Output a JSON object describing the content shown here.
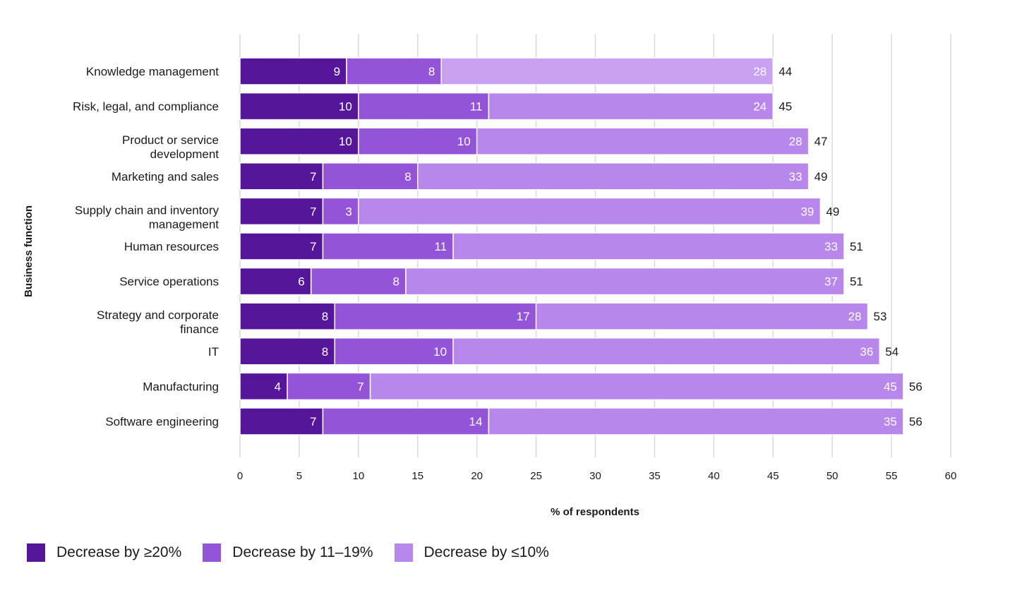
{
  "chart_data": {
    "type": "bar",
    "orientation": "horizontal",
    "stacked": true,
    "xlabel": "% of respondents",
    "ylabel": "Business function",
    "xlim": [
      0,
      60
    ],
    "xticks": [
      "0",
      "5",
      "10",
      "15",
      "20",
      "25",
      "30",
      "35",
      "40",
      "45",
      "50",
      "55",
      "60"
    ],
    "grid": true,
    "legend_position": "bottom-left",
    "categories": [
      [
        "Knowledge management"
      ],
      [
        "Risk, legal, and compliance"
      ],
      [
        "Product or service",
        "development"
      ],
      [
        "Marketing and sales"
      ],
      [
        "Supply chain and inventory",
        "management"
      ],
      [
        "Human resources"
      ],
      [
        "Service operations"
      ],
      [
        "Strategy and corporate",
        "finance"
      ],
      [
        "IT"
      ],
      [
        "Manufacturing"
      ],
      [
        "Software engineering"
      ]
    ],
    "series": [
      {
        "name": "Decrease by ≥20%",
        "color": "#56169a",
        "values": [
          9,
          10,
          10,
          7,
          7,
          7,
          6,
          8,
          8,
          4,
          7
        ]
      },
      {
        "name": "Decrease by 11–19%",
        "color": "#9454d8",
        "values": [
          8,
          11,
          10,
          8,
          3,
          11,
          8,
          17,
          10,
          7,
          14
        ]
      },
      {
        "name": "Decrease by ≤10%",
        "colors": [
          "#c8a1f0",
          "#b787ec",
          "#b787ec",
          "#b787ec",
          "#b787ec",
          "#b787ec",
          "#b787ec",
          "#b787ec",
          "#b787ec",
          "#b787ec",
          "#b787ec"
        ],
        "color": "#b787ec",
        "values": [
          28,
          24,
          28,
          33,
          39,
          33,
          37,
          28,
          36,
          45,
          35
        ]
      }
    ],
    "totals": [
      44,
      45,
      47,
      49,
      49,
      51,
      51,
      53,
      54,
      56,
      56
    ]
  }
}
